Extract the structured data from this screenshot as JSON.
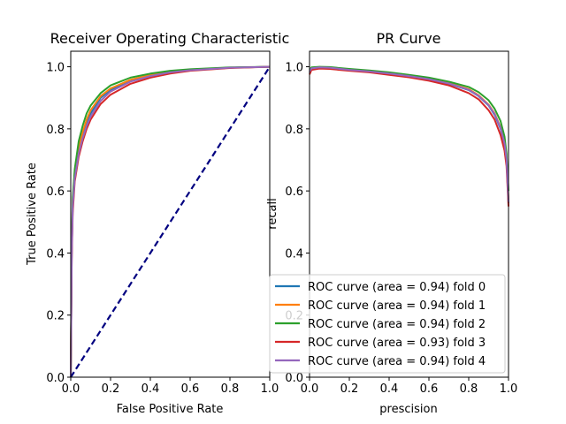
{
  "chart_data": [
    {
      "type": "line",
      "title": "Receiver Operating Characteristic",
      "xlabel": "False Positive Rate",
      "ylabel": "True Positive Rate",
      "xlim": [
        0,
        1.0
      ],
      "ylim": [
        0,
        1.05
      ],
      "xticks": [
        "0.0",
        "0.2",
        "0.4",
        "0.6",
        "0.8",
        "1.0"
      ],
      "yticks": [
        "0.0",
        "0.2",
        "0.4",
        "0.6",
        "0.8",
        "1.0"
      ],
      "grid": false,
      "series": [
        {
          "color": "#1f77b4",
          "x": [
            0,
            0.005,
            0.01,
            0.02,
            0.04,
            0.06,
            0.08,
            0.1,
            0.15,
            0.2,
            0.3,
            0.4,
            0.5,
            0.6,
            0.8,
            1.0
          ],
          "y": [
            0,
            0.4,
            0.55,
            0.65,
            0.73,
            0.78,
            0.82,
            0.85,
            0.9,
            0.925,
            0.955,
            0.972,
            0.983,
            0.99,
            0.997,
            1.0
          ]
        },
        {
          "color": "#ff7f0e",
          "x": [
            0,
            0.005,
            0.01,
            0.02,
            0.04,
            0.06,
            0.08,
            0.1,
            0.15,
            0.2,
            0.3,
            0.4,
            0.5,
            0.6,
            0.8,
            1.0
          ],
          "y": [
            0,
            0.42,
            0.57,
            0.66,
            0.74,
            0.79,
            0.83,
            0.86,
            0.905,
            0.93,
            0.958,
            0.974,
            0.985,
            0.991,
            0.997,
            1.0
          ]
        },
        {
          "color": "#2ca02c",
          "x": [
            0,
            0.005,
            0.01,
            0.02,
            0.04,
            0.06,
            0.08,
            0.1,
            0.15,
            0.2,
            0.3,
            0.4,
            0.5,
            0.6,
            0.8,
            1.0
          ],
          "y": [
            0,
            0.43,
            0.58,
            0.67,
            0.76,
            0.81,
            0.85,
            0.875,
            0.915,
            0.94,
            0.965,
            0.978,
            0.987,
            0.992,
            0.998,
            1.0
          ]
        },
        {
          "color": "#d62728",
          "x": [
            0,
            0.005,
            0.01,
            0.02,
            0.04,
            0.06,
            0.08,
            0.1,
            0.15,
            0.2,
            0.3,
            0.4,
            0.5,
            0.6,
            0.8,
            1.0
          ],
          "y": [
            0,
            0.38,
            0.53,
            0.63,
            0.71,
            0.76,
            0.8,
            0.83,
            0.88,
            0.91,
            0.945,
            0.965,
            0.978,
            0.987,
            0.996,
            1.0
          ]
        },
        {
          "color": "#9467bd",
          "x": [
            0,
            0.005,
            0.01,
            0.02,
            0.04,
            0.06,
            0.08,
            0.1,
            0.15,
            0.2,
            0.3,
            0.4,
            0.5,
            0.6,
            0.8,
            1.0
          ],
          "y": [
            0,
            0.4,
            0.55,
            0.64,
            0.72,
            0.77,
            0.81,
            0.84,
            0.89,
            0.92,
            0.952,
            0.97,
            0.982,
            0.989,
            0.997,
            1.0
          ]
        }
      ],
      "reference_line": {
        "color": "#000080",
        "style": "dashed",
        "x": [
          0,
          1
        ],
        "y": [
          0,
          1
        ]
      }
    },
    {
      "type": "line",
      "title": "PR Curve",
      "xlabel": "prescision",
      "ylabel": "recall",
      "xlim": [
        0,
        1.0
      ],
      "ylim": [
        0,
        1.05
      ],
      "xticks": [
        "0.0",
        "0.2",
        "0.4",
        "0.6",
        "0.8",
        "1.0"
      ],
      "yticks": [
        "0.0",
        "0.2",
        "0.4",
        "0.6",
        "0.8",
        "1.0"
      ],
      "grid": false,
      "legend_position": "lower-right",
      "series": [
        {
          "name": "ROC curve (area = 0.94) fold 0",
          "color": "#1f77b4",
          "x": [
            0,
            0.01,
            0.05,
            0.1,
            0.2,
            0.3,
            0.4,
            0.5,
            0.6,
            0.7,
            0.8,
            0.85,
            0.9,
            0.93,
            0.96,
            0.98,
            0.99,
            1.0
          ],
          "y": [
            0.98,
            0.995,
            0.998,
            0.997,
            0.99,
            0.985,
            0.978,
            0.97,
            0.96,
            0.945,
            0.925,
            0.905,
            0.875,
            0.845,
            0.8,
            0.75,
            0.7,
            0.56
          ]
        },
        {
          "name": "ROC curve (area = 0.94) fold 1",
          "color": "#ff7f0e",
          "x": [
            0,
            0.01,
            0.05,
            0.1,
            0.2,
            0.3,
            0.4,
            0.5,
            0.6,
            0.7,
            0.8,
            0.85,
            0.9,
            0.93,
            0.96,
            0.98,
            0.99,
            1.0
          ],
          "y": [
            0.985,
            0.996,
            0.999,
            0.997,
            0.991,
            0.986,
            0.979,
            0.971,
            0.961,
            0.947,
            0.928,
            0.908,
            0.878,
            0.85,
            0.805,
            0.755,
            0.705,
            0.57
          ]
        },
        {
          "name": "ROC curve (area = 0.94) fold 2",
          "color": "#2ca02c",
          "x": [
            0,
            0.01,
            0.05,
            0.1,
            0.2,
            0.3,
            0.4,
            0.5,
            0.6,
            0.7,
            0.8,
            0.85,
            0.9,
            0.93,
            0.96,
            0.98,
            0.99,
            1.0
          ],
          "y": [
            0.99,
            0.998,
            1.0,
            0.999,
            0.993,
            0.988,
            0.982,
            0.974,
            0.965,
            0.952,
            0.935,
            0.918,
            0.892,
            0.865,
            0.825,
            0.775,
            0.72,
            0.6
          ]
        },
        {
          "name": "ROC curve (area = 0.93) fold 3",
          "color": "#d62728",
          "x": [
            0,
            0.01,
            0.05,
            0.1,
            0.2,
            0.3,
            0.4,
            0.5,
            0.6,
            0.7,
            0.8,
            0.85,
            0.9,
            0.93,
            0.96,
            0.98,
            0.99,
            1.0
          ],
          "y": [
            0.975,
            0.99,
            0.994,
            0.993,
            0.987,
            0.982,
            0.974,
            0.966,
            0.955,
            0.94,
            0.915,
            0.895,
            0.86,
            0.83,
            0.78,
            0.73,
            0.68,
            0.55
          ]
        },
        {
          "name": "ROC curve (area = 0.94) fold 4",
          "color": "#9467bd",
          "x": [
            0,
            0.01,
            0.05,
            0.1,
            0.2,
            0.3,
            0.4,
            0.5,
            0.6,
            0.7,
            0.8,
            0.85,
            0.9,
            0.93,
            0.96,
            0.98,
            0.99,
            1.0
          ],
          "y": [
            0.985,
            0.995,
            0.998,
            0.997,
            0.99,
            0.985,
            0.978,
            0.97,
            0.96,
            0.946,
            0.926,
            0.906,
            0.876,
            0.848,
            0.803,
            0.753,
            0.702,
            0.565
          ]
        }
      ]
    }
  ]
}
